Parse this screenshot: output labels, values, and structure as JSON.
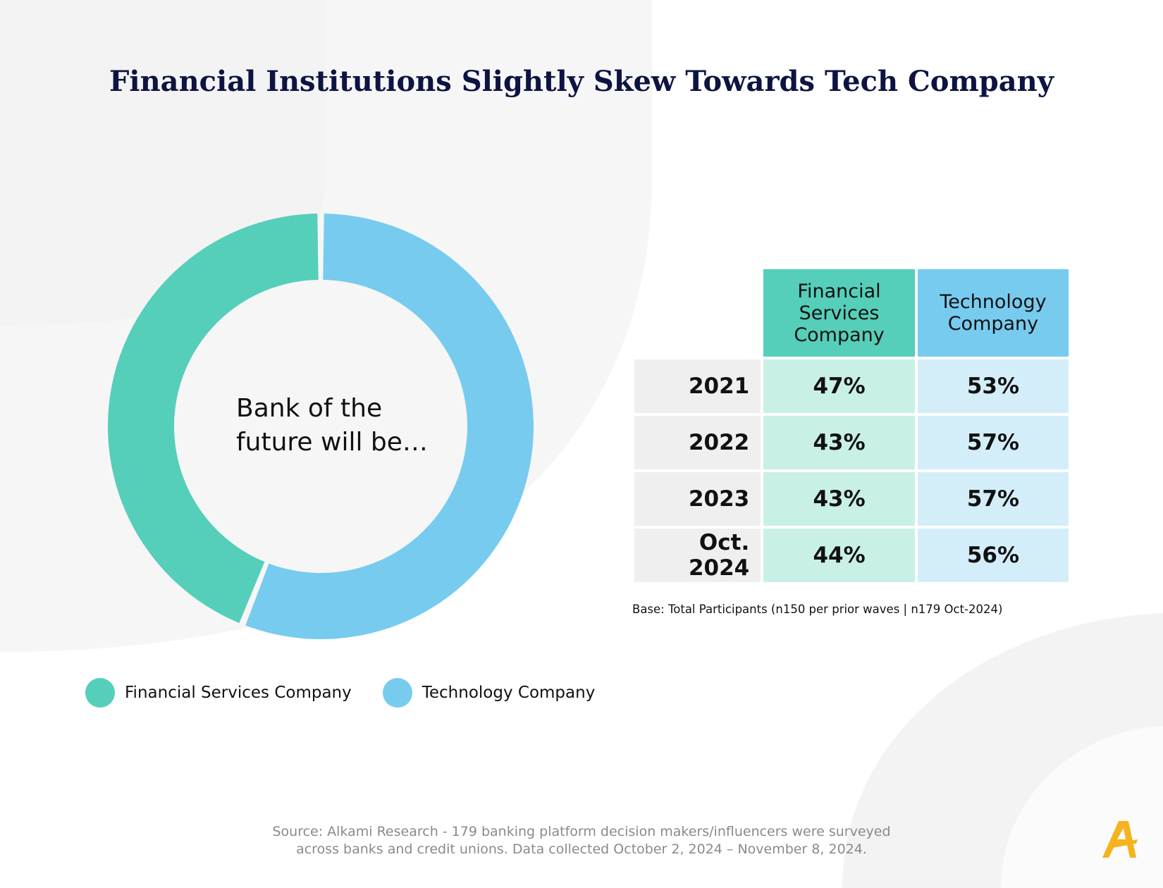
{
  "title": "Financial Institutions Slightly Skew Towards Tech Company",
  "colors": {
    "financial": "#55cfb9",
    "technology": "#77cbef",
    "financial_light": "#c8f0e6",
    "technology_light": "#d4eef9",
    "year_bg": "#efefef",
    "title": "#0d1442",
    "logo": "#f5b41e"
  },
  "chart_data": [
    {
      "type": "pie",
      "style": "donut",
      "center_label_lines": [
        "Bank of the",
        "future will be…"
      ],
      "categories": [
        "Financial Services Company",
        "Technology Company"
      ],
      "values": [
        44,
        56
      ],
      "legend_position": "bottom-left"
    },
    {
      "type": "table",
      "columns": [
        "Financial Services Company",
        "Technology Company"
      ],
      "column_header_lines": [
        [
          "Financial",
          "Services",
          "Company"
        ],
        [
          "Technology",
          "Company"
        ]
      ],
      "rows": [
        {
          "label": "2021",
          "values": [
            "47%",
            "53%"
          ]
        },
        {
          "label": "2022",
          "values": [
            "43%",
            "57%"
          ]
        },
        {
          "label": "2023",
          "values": [
            "43%",
            "57%"
          ]
        },
        {
          "label": "Oct. 2024",
          "values": [
            "44%",
            "56%"
          ]
        }
      ]
    }
  ],
  "legend": [
    {
      "label": "Financial Services Company"
    },
    {
      "label": "Technology Company"
    }
  ],
  "table_header": {
    "financial_lines": [
      "Financial",
      "Services",
      "Company"
    ],
    "technology_lines": [
      "Technology",
      "Company"
    ]
  },
  "table_rows": [
    {
      "year": "2021",
      "financial": "47%",
      "technology": "53%"
    },
    {
      "year": "2022",
      "financial": "43%",
      "technology": "57%"
    },
    {
      "year": "2023",
      "financial": "43%",
      "technology": "57%"
    },
    {
      "year": "Oct. 2024",
      "financial": "44%",
      "technology": "56%"
    }
  ],
  "base_note": "Base: Total Participants (n150 per prior waves | n179 Oct-2024)",
  "source_lines": [
    "Source: Alkami Research -  179 banking platform decision makers/influencers were surveyed",
    "across banks and credit unions. Data collected October 2, 2024 – November 8, 2024."
  ],
  "logo_icon": "alkami-logo-icon"
}
